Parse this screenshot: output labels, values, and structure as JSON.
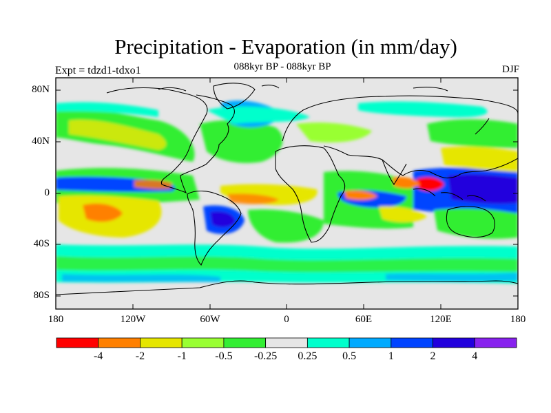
{
  "title": "Precipitation - Evaporation (in mm/day)",
  "subtitle_left": "Expt = tdzd1-tdxo1",
  "subtitle_center": "088kyr BP - 088kyr BP",
  "subtitle_right": "DJF",
  "y_ticks": [
    "80N",
    "40N",
    "0",
    "40S",
    "80S"
  ],
  "x_ticks": [
    "180",
    "120W",
    "60W",
    "0",
    "60E",
    "120E",
    "180"
  ],
  "colorbar": {
    "labels": [
      "-4",
      "-2",
      "-1",
      "-0.5",
      "-0.25",
      "0.25",
      "0.5",
      "1",
      "2",
      "4"
    ],
    "colors": [
      "#ff0000",
      "#ff8000",
      "#e6e600",
      "#99ff33",
      "#33ee33",
      "#e6e6e6",
      "#00ffcc",
      "#00aaff",
      "#0044ff",
      "#2200dd",
      "#8822ee"
    ]
  },
  "chart_data": {
    "type": "heatmap",
    "title": "Precipitation - Evaporation (in mm/day)",
    "xlabel": "",
    "ylabel": "",
    "xlim": [
      -180,
      180
    ],
    "ylim": [
      -90,
      90
    ],
    "levels": [
      -4,
      -2,
      -1,
      -0.5,
      -0.25,
      0.25,
      0.5,
      1,
      2,
      4
    ],
    "season": "DJF"
  }
}
